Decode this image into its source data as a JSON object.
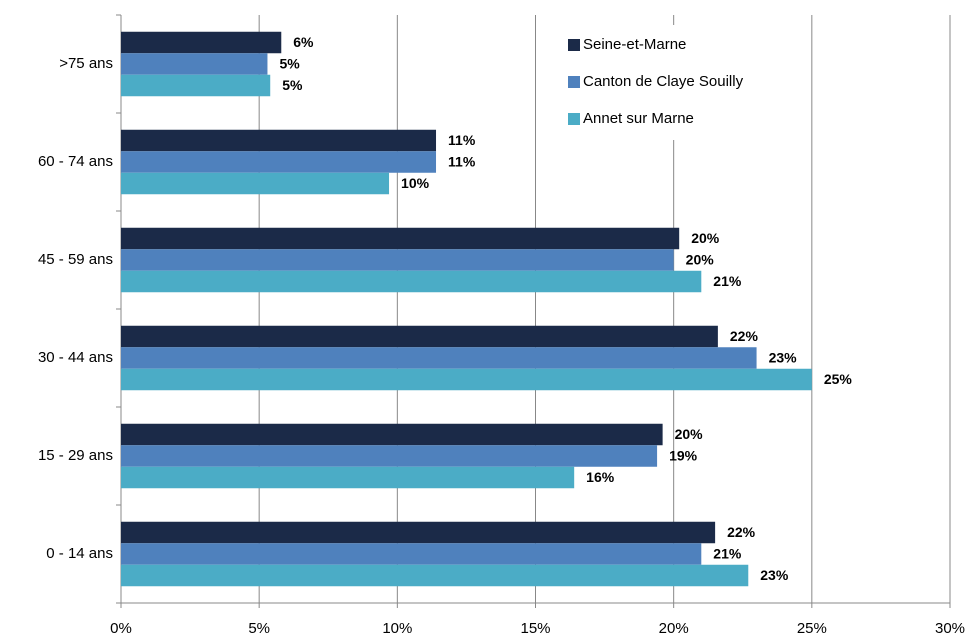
{
  "chart_data": {
    "type": "hbar",
    "categories": [
      ">75 ans",
      "60 - 74 ans",
      "45 - 59 ans",
      "30 - 44 ans",
      "15 - 29 ans",
      "0 - 14 ans"
    ],
    "series": [
      {
        "name": "Seine-et-Marne",
        "color": "#1b2a48",
        "values": [
          5.8,
          11.4,
          20.2,
          21.6,
          19.6,
          21.5
        ],
        "value_labels": [
          "6%",
          "11%",
          "20%",
          "22%",
          "20%",
          "22%"
        ]
      },
      {
        "name": "Canton de Claye Souilly",
        "color": "#4f81bd",
        "values": [
          5.3,
          11.4,
          20.0,
          23.0,
          19.4,
          21.0
        ],
        "value_labels": [
          "5%",
          "11%",
          "20%",
          "23%",
          "19%",
          "21%"
        ]
      },
      {
        "name": "Annet sur Marne",
        "color": "#4bacc6",
        "values": [
          5.4,
          9.7,
          21.0,
          25.0,
          16.4,
          22.7
        ],
        "value_labels": [
          "5%",
          "10%",
          "21%",
          "25%",
          "16%",
          "23%"
        ]
      }
    ],
    "xlim": [
      0,
      30
    ],
    "xticks": [
      {
        "value": 0,
        "label": "0%"
      },
      {
        "value": 5,
        "label": "5%"
      },
      {
        "value": 10,
        "label": "10%"
      },
      {
        "value": 15,
        "label": "15%"
      },
      {
        "value": 20,
        "label": "20%"
      },
      {
        "value": 25,
        "label": "25%"
      },
      {
        "value": 30,
        "label": "30%"
      }
    ],
    "grid": true,
    "legend": "top-right"
  }
}
